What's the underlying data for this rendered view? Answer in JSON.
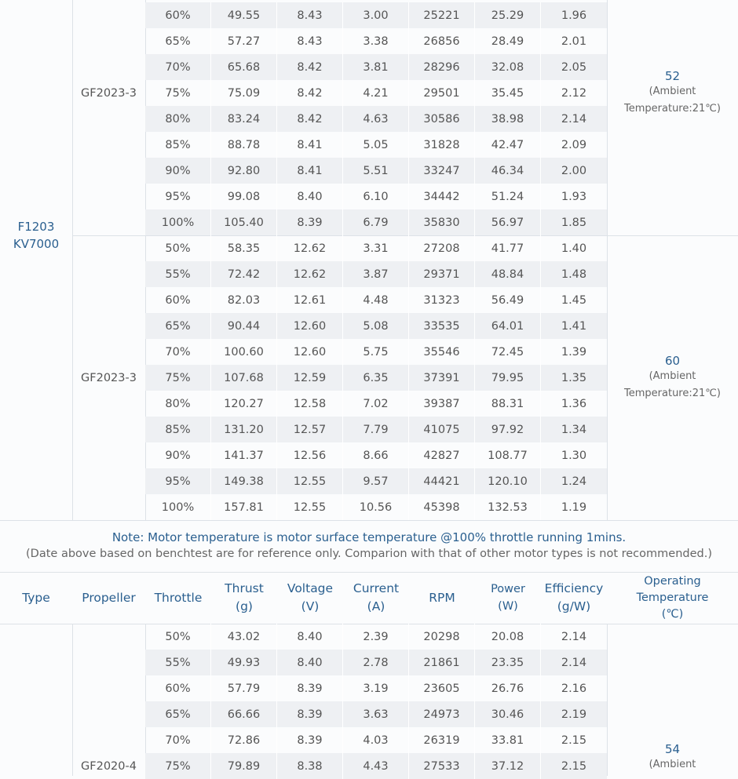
{
  "motor": {
    "line1": "F1203",
    "line2": "KV7000"
  },
  "block1": {
    "propeller": "GF2023-3",
    "temp_value": "52",
    "temp_note1": "(Ambient",
    "temp_note2": "Temperature:21℃)",
    "rows": [
      [
        "60%",
        "49.55",
        "8.43",
        "3.00",
        "25221",
        "25.29",
        "1.96"
      ],
      [
        "65%",
        "57.27",
        "8.43",
        "3.38",
        "26856",
        "28.49",
        "2.01"
      ],
      [
        "70%",
        "65.68",
        "8.42",
        "3.81",
        "28296",
        "32.08",
        "2.05"
      ],
      [
        "75%",
        "75.09",
        "8.42",
        "4.21",
        "29501",
        "35.45",
        "2.12"
      ],
      [
        "80%",
        "83.24",
        "8.42",
        "4.63",
        "30586",
        "38.98",
        "2.14"
      ],
      [
        "85%",
        "88.78",
        "8.41",
        "5.05",
        "31828",
        "42.47",
        "2.09"
      ],
      [
        "90%",
        "92.80",
        "8.41",
        "5.51",
        "33247",
        "46.34",
        "2.00"
      ],
      [
        "95%",
        "99.08",
        "8.40",
        "6.10",
        "34442",
        "51.24",
        "1.93"
      ],
      [
        "100%",
        "105.40",
        "8.39",
        "6.79",
        "35830",
        "56.97",
        "1.85"
      ]
    ]
  },
  "block2": {
    "propeller": "GF2023-3",
    "temp_value": "60",
    "temp_note1": "(Ambient",
    "temp_note2": "Temperature:21℃)",
    "rows": [
      [
        "50%",
        "58.35",
        "12.62",
        "3.31",
        "27208",
        "41.77",
        "1.40"
      ],
      [
        "55%",
        "72.42",
        "12.62",
        "3.87",
        "29371",
        "48.84",
        "1.48"
      ],
      [
        "60%",
        "82.03",
        "12.61",
        "4.48",
        "31323",
        "56.49",
        "1.45"
      ],
      [
        "65%",
        "90.44",
        "12.60",
        "5.08",
        "33535",
        "64.01",
        "1.41"
      ],
      [
        "70%",
        "100.60",
        "12.60",
        "5.75",
        "35546",
        "72.45",
        "1.39"
      ],
      [
        "75%",
        "107.68",
        "12.59",
        "6.35",
        "37391",
        "79.95",
        "1.35"
      ],
      [
        "80%",
        "120.27",
        "12.58",
        "7.02",
        "39387",
        "88.31",
        "1.36"
      ],
      [
        "85%",
        "131.20",
        "12.57",
        "7.79",
        "41075",
        "97.92",
        "1.34"
      ],
      [
        "90%",
        "141.37",
        "12.56",
        "8.66",
        "42827",
        "108.77",
        "1.30"
      ],
      [
        "95%",
        "149.38",
        "12.55",
        "9.57",
        "44421",
        "120.10",
        "1.24"
      ],
      [
        "100%",
        "157.81",
        "12.55",
        "10.56",
        "45398",
        "132.53",
        "1.19"
      ]
    ]
  },
  "note": {
    "line1": "Note: Motor temperature is motor surface temperature @100% throttle running 1mins.",
    "line2": "(Date above based on benchtest are for reference only. Comparion with that of other motor types is not recommended.)"
  },
  "header": {
    "type": "Type",
    "propeller": "Propeller",
    "throttle": "Throttle",
    "thrust1": "Thrust",
    "thrust2": "(g)",
    "voltage1": "Voltage",
    "voltage2": "(V)",
    "current1": "Current",
    "current2": "(A)",
    "rpm": "RPM",
    "power1": "Power",
    "power2": "(W)",
    "eff1": "Efficiency",
    "eff2": "(g/W)",
    "temp1": "Operating",
    "temp2": "Temperature",
    "temp3": "(℃)"
  },
  "block3": {
    "propeller": "GF2020-4",
    "temp_value": "54",
    "temp_note1": "(Ambient",
    "rows": [
      [
        "50%",
        "43.02",
        "8.40",
        "2.39",
        "20298",
        "20.08",
        "2.14"
      ],
      [
        "55%",
        "49.93",
        "8.40",
        "2.78",
        "21861",
        "23.35",
        "2.14"
      ],
      [
        "60%",
        "57.79",
        "8.39",
        "3.19",
        "23605",
        "26.76",
        "2.16"
      ],
      [
        "65%",
        "66.66",
        "8.39",
        "3.63",
        "24973",
        "30.46",
        "2.19"
      ],
      [
        "70%",
        "72.86",
        "8.39",
        "4.03",
        "26319",
        "33.81",
        "2.15"
      ],
      [
        "75%",
        "79.89",
        "8.38",
        "4.43",
        "27533",
        "37.12",
        "2.15"
      ]
    ]
  }
}
